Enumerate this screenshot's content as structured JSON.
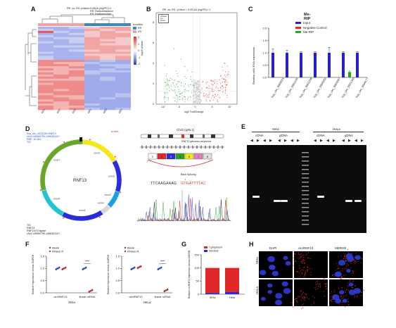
{
  "figure": {
    "panel_labels": [
      "A",
      "B",
      "C",
      "D",
      "E",
      "F",
      "G",
      "H"
    ]
  },
  "panelA": {
    "title": "RR -vs- RS; pValue<0.05&& |log2FC|>1",
    "rr_label": "RR: Radioresistance",
    "rs_label": "RS: Radiosensitive",
    "legend_title": "condition",
    "legend_items": [
      "RR",
      "RS"
    ],
    "legend_colors": [
      "#3a86c8",
      "#f4a0a6"
    ],
    "scale_values": [
      "2",
      "1",
      "0",
      "-1",
      "-2"
    ],
    "column_labels": [
      "RS1",
      "RS2",
      "RS3",
      "RR1",
      "RR2",
      "RR3"
    ]
  },
  "panelB": {
    "title": "RR -vs- RS ; pValue < 0.05 && |log2FC|> 1",
    "legend": [
      "Unique",
      "Up",
      "Down"
    ],
    "ylabel": "-log10 pValue",
    "xlabel": "log2 FoldChange",
    "xticks": [
      "-10",
      "-5",
      "0",
      "5",
      "10"
    ],
    "yticks": [
      "0",
      "2",
      "4",
      "6",
      "8"
    ],
    "colors": {
      "up": "#e0413a",
      "down": "#3aa54a",
      "ns": "#c8c8c8"
    }
  },
  "panelC": {
    "chart_data": {
      "type": "bar",
      "title": "Me-RIP",
      "ylabel": "Relative m6A RNA expression",
      "categories": [
        "hsa_circ_0000021",
        "hsa_circ_0001109",
        "hsa_circ_0002208",
        "hsa_circ_0000052",
        "hsa_circ_0000067",
        "hsa_circ_0031340",
        "hsa_circ_0044177"
      ],
      "series": [
        {
          "name": "Input",
          "color": "#2323c8",
          "values": [
            1.0,
            1.0,
            1.0,
            1.0,
            1.0,
            1.0,
            1.0
          ],
          "errors": [
            0.15,
            0.1,
            0.05,
            0.05,
            0.22,
            0.05,
            0.05
          ]
        },
        {
          "name": "Negative Control",
          "color": "#e03030",
          "values": [
            0.01,
            0.01,
            0.01,
            0.01,
            0.01,
            0.01,
            0.01
          ],
          "errors": [
            0,
            0,
            0,
            0,
            0,
            0,
            0
          ]
        },
        {
          "name": "Me-RIP",
          "color": "#2aa52a",
          "values": [
            0.01,
            0.01,
            0.01,
            0.01,
            0.01,
            0.22,
            0.01
          ],
          "errors": [
            0,
            0,
            0,
            0,
            0,
            0.05,
            0
          ]
        }
      ],
      "yticks": [
        "0.0",
        "0.5",
        "1.0",
        "1.5",
        "2.0"
      ],
      "ylim": [
        0,
        2.0
      ]
    }
  },
  "panelD": {
    "top_left_text": [
      "hsa_circ_0031340 RNF13",
      "chr3:149560790-149630412+",
      "RBP: 10,381",
      "TIS"
    ],
    "legend": "m6A",
    "center_label": "RNF13",
    "exon_labels": [
      "exon1",
      "exon2",
      "exon3",
      "exon4",
      "exon5",
      "exon6",
      "exon7"
    ],
    "bottom_left_text": [
      "TIS",
      "RNF13",
      "RNF13:E3 ligase",
      "chr3:149560790-149630412+"
    ],
    "gene_label": "Chr3 (q25.1)",
    "genomic_label": "RNF13 genomic sequence",
    "exon_numbers": [
      "2",
      "3",
      "4",
      "5",
      "6",
      "7",
      "8"
    ],
    "splice_label": "Back Splicing",
    "sequence_black": "TTCAAGAAAG",
    "sequence_red": "GTGATTTTAC"
  },
  "panelE": {
    "cell_lines": [
      "SiHa",
      "HeLa"
    ],
    "lane_groups": [
      "cDNA",
      "gDNA",
      "cDNA",
      "gDNA"
    ]
  },
  "panelF": {
    "chart_data": [
      {
        "type": "scatter",
        "cell_line": "SiHa",
        "ylabel": "Relative expression versus GAPDH",
        "categories": [
          "circRNF13",
          "linear mRNA"
        ],
        "series": [
          {
            "name": "Blank",
            "color": "#3050c8",
            "values": [
              1.0,
              1.0
            ]
          },
          {
            "name": "RNase R",
            "color": "#d03030",
            "values": [
              1.0,
              0.08
            ]
          }
        ],
        "significance": "***",
        "yticks": [
          "0.0",
          "0.5",
          "1.0",
          "1.5"
        ],
        "ylim": [
          0,
          1.5
        ]
      },
      {
        "type": "scatter",
        "cell_line": "HeLa",
        "ylabel": "Relative expression versus GAPDH",
        "categories": [
          "circRNF13",
          "linear mRNA"
        ],
        "series": [
          {
            "name": "Blank",
            "color": "#3050c8",
            "values": [
              1.0,
              1.0
            ]
          },
          {
            "name": "RNase R",
            "color": "#d03030",
            "values": [
              1.05,
              0.1
            ]
          }
        ],
        "significance": "***",
        "yticks": [
          "0.0",
          "0.5",
          "1.0",
          "1.5"
        ],
        "ylim": [
          0,
          1.5
        ]
      }
    ]
  },
  "panelG": {
    "chart_data": {
      "type": "bar",
      "ylabel": "Relative circRNF13 expression versus GAPDH",
      "categories": [
        "SiHa",
        "Hela"
      ],
      "series": [
        {
          "name": "Cytoplasm",
          "color": "#e02828",
          "values": [
            95,
            92
          ]
        },
        {
          "name": "Nuclear",
          "color": "#2a2ad0",
          "values": [
            5,
            8
          ]
        }
      ],
      "yticks": [
        "0",
        "50",
        "100",
        "150"
      ],
      "ylim": [
        0,
        150
      ]
    }
  },
  "panelH": {
    "column_labels": [
      "DAPI",
      "circRNF13",
      "MERGE"
    ],
    "row_labels": [
      "SiHa",
      "HeLa"
    ]
  }
}
